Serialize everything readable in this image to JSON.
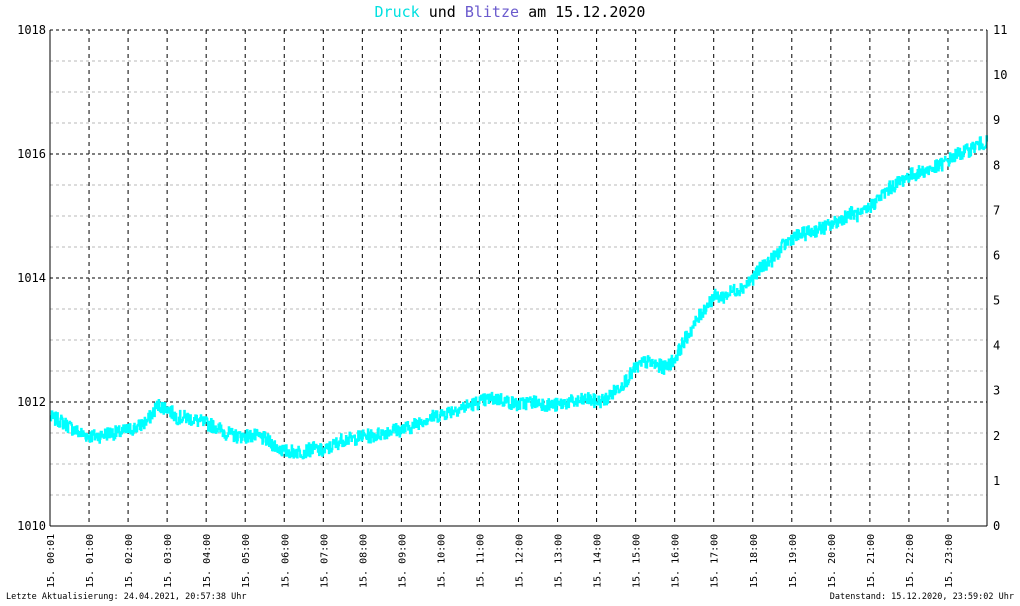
{
  "title": {
    "series1_word": "Druck",
    "connector": "und",
    "series2_word": "Blitze",
    "date_prefix": "am",
    "date": "15.12.2020"
  },
  "colors": {
    "pressure": "#00ffff",
    "lightning": "#6a5acd",
    "grid": "#000000",
    "minor_grid": "#b8b8b8",
    "background": "#ffffff"
  },
  "footer": {
    "left": "Letzte Aktualisierung: 24.04.2021, 20:57:38 Uhr",
    "right": "Datenstand: 15.12.2020, 23:59:02 Uhr"
  },
  "chart_data": {
    "type": "line",
    "title": "Druck und Blitze am 15.12.2020",
    "x_tick_labels": [
      "15. 00:01",
      "15. 01:00",
      "15. 02:00",
      "15. 03:00",
      "15. 04:00",
      "15. 05:00",
      "15. 06:00",
      "15. 07:00",
      "15. 08:00",
      "15. 09:00",
      "15. 10:00",
      "15. 11:00",
      "15. 12:00",
      "15. 13:00",
      "15. 14:00",
      "15. 15:00",
      "15. 16:00",
      "15. 17:00",
      "15. 18:00",
      "15. 19:00",
      "15. 20:00",
      "15. 21:00",
      "15. 22:00",
      "15. 23:00"
    ],
    "x_range_hours": [
      0,
      24
    ],
    "y_left": {
      "range": [
        1010,
        1018
      ],
      "ticks": [
        "1010",
        "1012",
        "1014",
        "1016",
        "1018"
      ]
    },
    "y_right": {
      "range": [
        0,
        11
      ],
      "ticks": [
        "0",
        "1",
        "2",
        "3",
        "4",
        "5",
        "6",
        "7",
        "8",
        "9",
        "10",
        "11"
      ]
    },
    "grid": true,
    "series": [
      {
        "name": "Druck",
        "axis": "left",
        "x": [
          0,
          0.25,
          0.5,
          0.75,
          1,
          1.25,
          1.5,
          1.75,
          2,
          2.25,
          2.5,
          2.75,
          3,
          3.25,
          3.5,
          3.75,
          4,
          4.25,
          4.5,
          4.75,
          5,
          5.25,
          5.5,
          5.75,
          6,
          6.25,
          6.5,
          6.75,
          7,
          7.25,
          7.5,
          7.75,
          8,
          8.25,
          8.5,
          8.75,
          9,
          9.25,
          9.5,
          9.75,
          10,
          10.25,
          10.5,
          10.75,
          11,
          11.25,
          11.5,
          11.75,
          12,
          12.25,
          12.5,
          12.75,
          13,
          13.25,
          13.5,
          13.75,
          14,
          14.25,
          14.5,
          14.75,
          15,
          15.25,
          15.5,
          15.75,
          16,
          16.25,
          16.5,
          16.75,
          17,
          17.25,
          17.5,
          17.75,
          18,
          18.25,
          18.5,
          18.75,
          19,
          19.25,
          19.5,
          19.75,
          20,
          20.25,
          20.5,
          20.75,
          21,
          21.25,
          21.5,
          21.75,
          22,
          22.25,
          22.5,
          22.75,
          23,
          23.25,
          23.5,
          23.75,
          24
        ],
        "values": [
          1011.75,
          1011.7,
          1011.6,
          1011.5,
          1011.45,
          1011.45,
          1011.5,
          1011.5,
          1011.55,
          1011.6,
          1011.7,
          1011.95,
          1011.9,
          1011.75,
          1011.75,
          1011.7,
          1011.65,
          1011.6,
          1011.5,
          1011.45,
          1011.45,
          1011.45,
          1011.4,
          1011.3,
          1011.2,
          1011.2,
          1011.2,
          1011.25,
          1011.2,
          1011.3,
          1011.4,
          1011.4,
          1011.45,
          1011.45,
          1011.5,
          1011.55,
          1011.55,
          1011.6,
          1011.7,
          1011.75,
          1011.8,
          1011.85,
          1011.9,
          1011.95,
          1012.0,
          1012.05,
          1012.05,
          1012.0,
          1011.95,
          1012.0,
          1012.0,
          1011.95,
          1011.95,
          1012.0,
          1012.0,
          1012.05,
          1012.0,
          1012.05,
          1012.2,
          1012.35,
          1012.55,
          1012.65,
          1012.6,
          1012.55,
          1012.7,
          1013.0,
          1013.25,
          1013.5,
          1013.7,
          1013.7,
          1013.8,
          1013.85,
          1014.0,
          1014.2,
          1014.3,
          1014.5,
          1014.65,
          1014.7,
          1014.75,
          1014.8,
          1014.85,
          1014.95,
          1015.05,
          1015.0,
          1015.15,
          1015.3,
          1015.45,
          1015.55,
          1015.65,
          1015.7,
          1015.75,
          1015.8,
          1015.9,
          1016.0,
          1016.05,
          1016.15,
          1016.2
        ]
      }
    ]
  }
}
